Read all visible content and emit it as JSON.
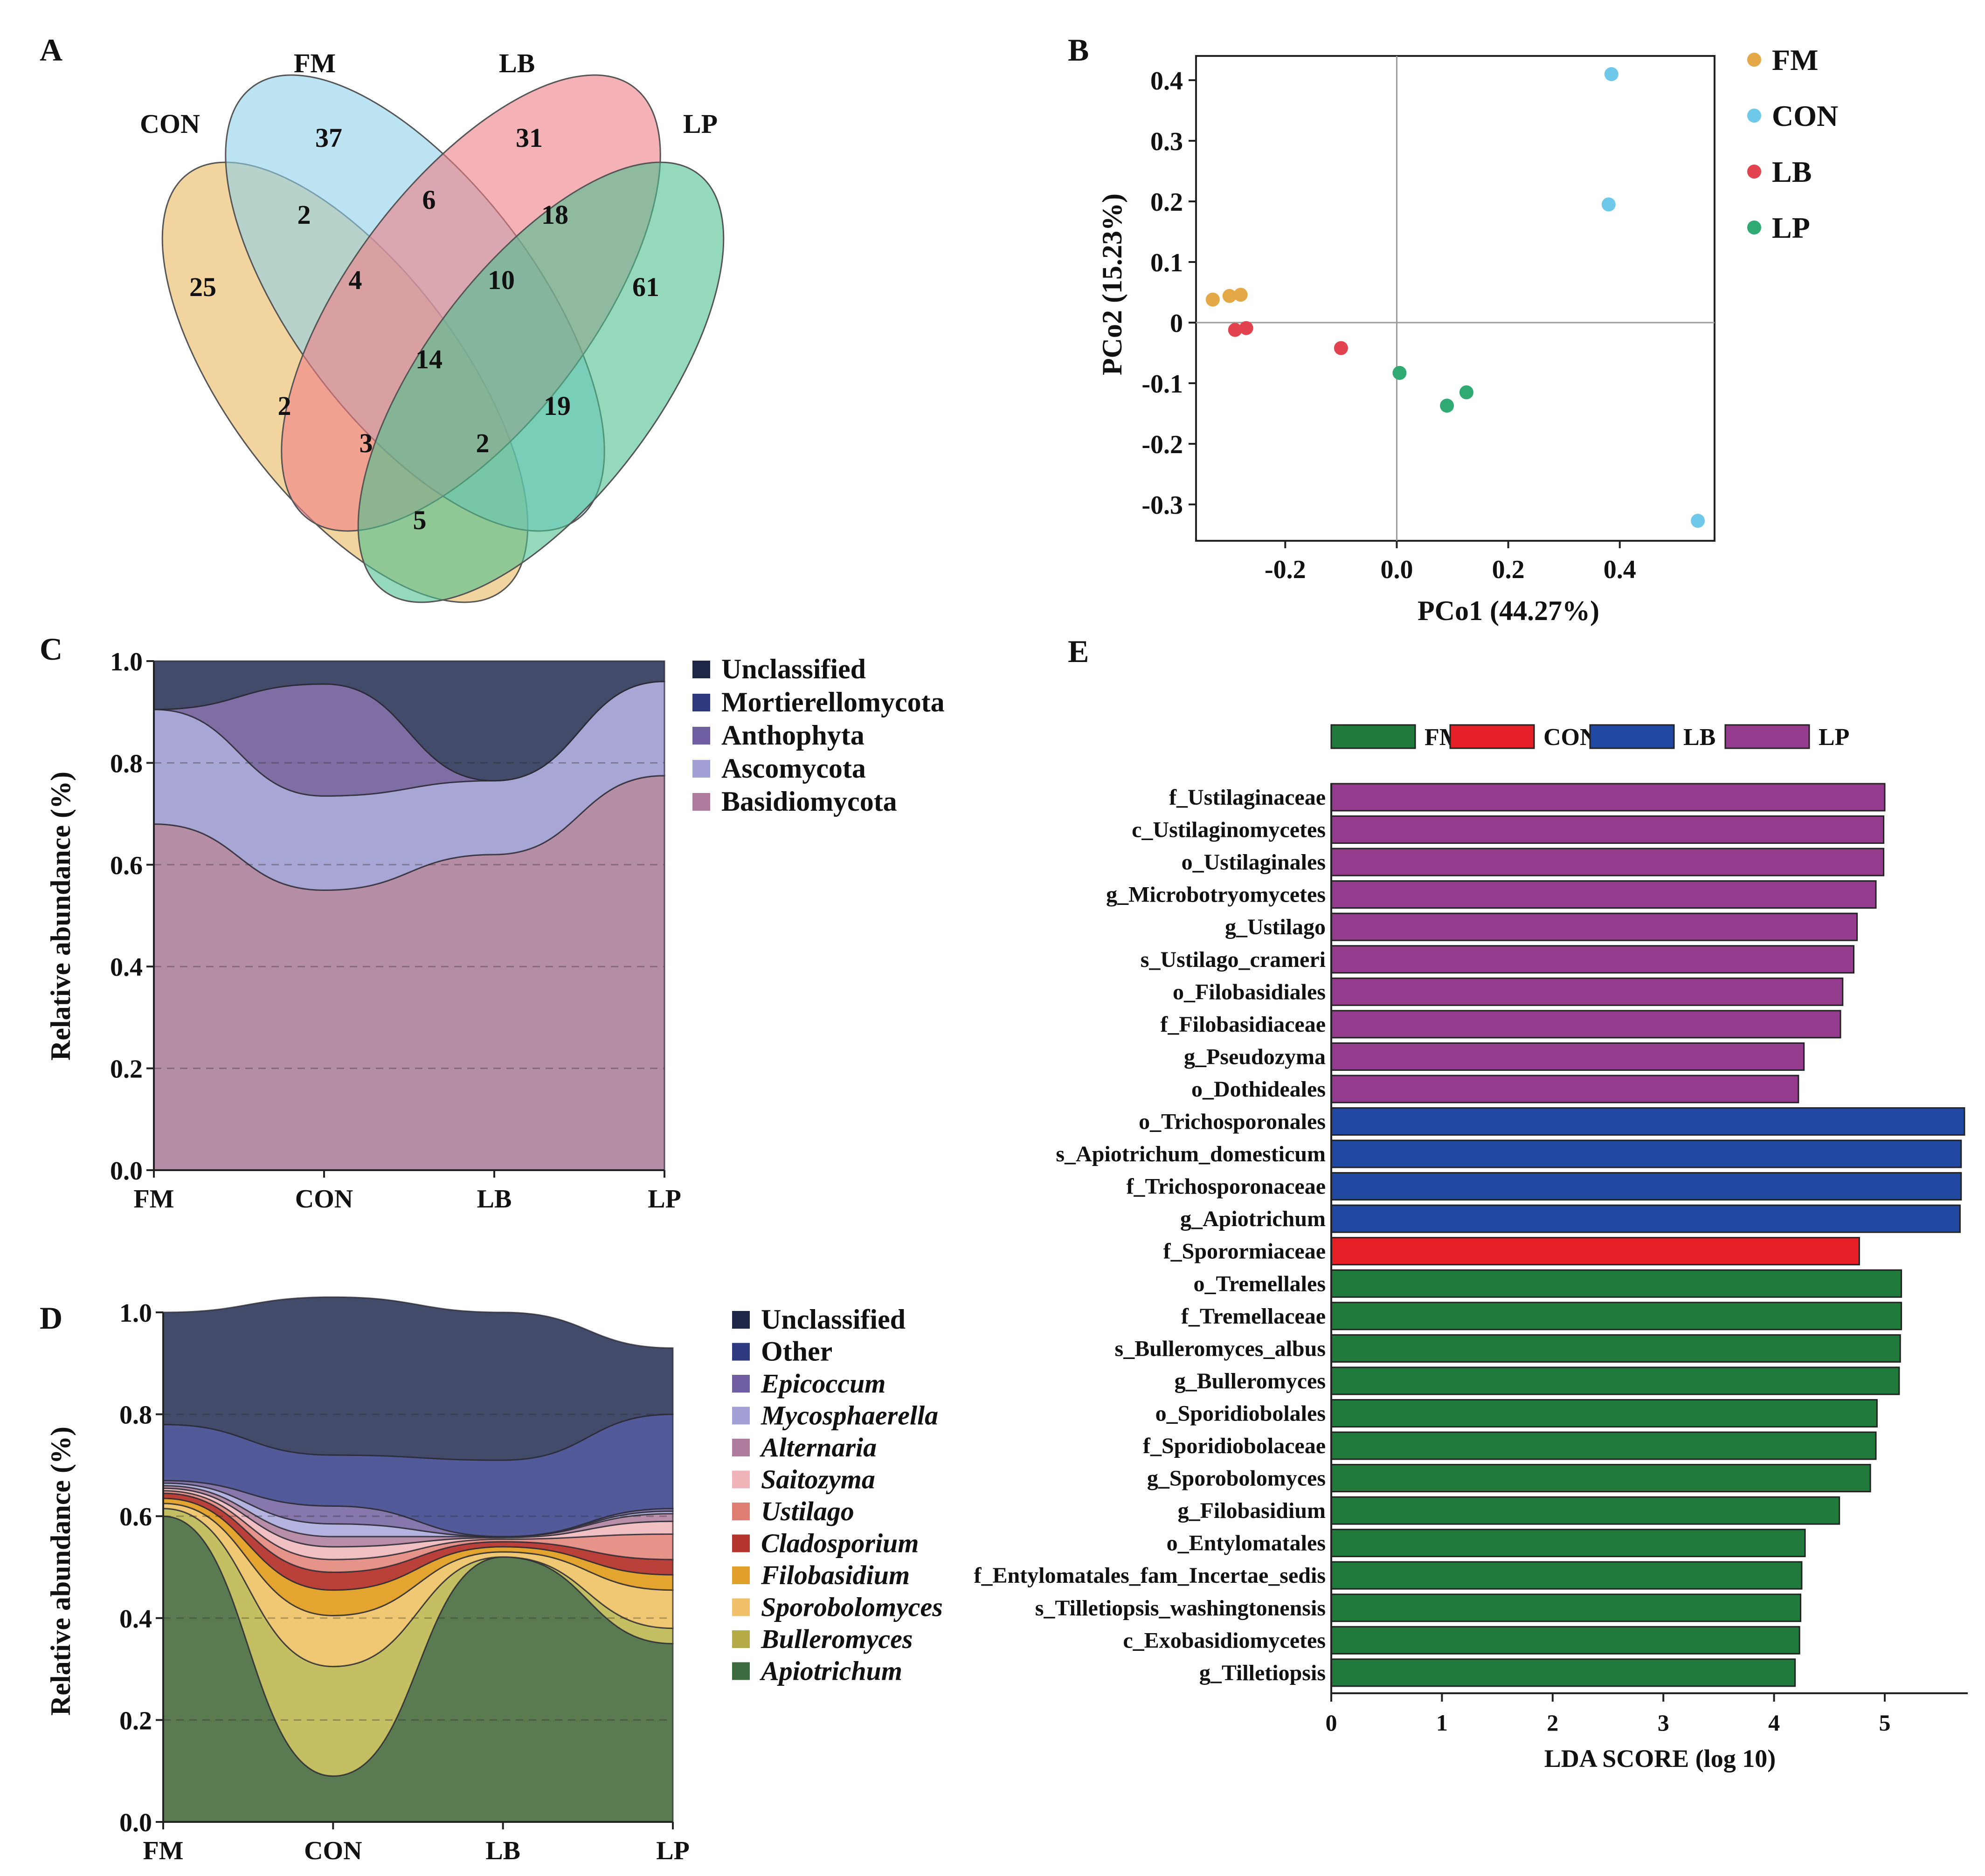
{
  "panels": {
    "A": "A",
    "B": "B",
    "C": "C",
    "D": "D",
    "E": "E"
  },
  "chart_data": [
    {
      "panel": "A",
      "type": "venn",
      "sets": [
        {
          "name": "CON",
          "color": "#e9b95e"
        },
        {
          "name": "FM",
          "color": "#8fd1ea"
        },
        {
          "name": "LB",
          "color": "#ee7f86"
        },
        {
          "name": "LP",
          "color": "#4cc08f"
        }
      ],
      "regions": [
        {
          "sets": "CON",
          "value": 25
        },
        {
          "sets": "FM",
          "value": 37
        },
        {
          "sets": "LB",
          "value": 31
        },
        {
          "sets": "LP",
          "value": 61
        },
        {
          "sets": "CON&FM",
          "value": 2
        },
        {
          "sets": "FM&LB",
          "value": 6
        },
        {
          "sets": "LB&LP",
          "value": 18
        },
        {
          "sets": "CON&FM&LB",
          "value": 4
        },
        {
          "sets": "FM&LB&LP",
          "value": 10
        },
        {
          "sets": "CON&FM&LB&LP",
          "value": 14
        },
        {
          "sets": "CON&LB",
          "value": 2
        },
        {
          "sets": "FM&LP",
          "value": 19
        },
        {
          "sets": "CON&LB&LP",
          "value": 3
        },
        {
          "sets": "CON&FM&LP",
          "value": 2
        },
        {
          "sets": "CON&LP",
          "value": 5
        }
      ]
    },
    {
      "panel": "B",
      "type": "scatter",
      "xlabel": "PCo1 (44.27%)",
      "ylabel": "PCo2 (15.23%)",
      "xlim": [
        -0.36,
        0.57
      ],
      "ylim": [
        -0.36,
        0.44
      ],
      "xticks": [
        -0.2,
        0.0,
        0.2,
        0.4
      ],
      "xtick_labels": [
        "-0.2",
        "0.0",
        "0.2",
        "0.4"
      ],
      "yticks": [
        0.4,
        0.3,
        0.2,
        0.1,
        0,
        -0.1,
        -0.2,
        -0.3
      ],
      "ytick_labels": [
        "0.4",
        "0.3",
        "0.2",
        "0.1",
        "0",
        "-0.1",
        "-0.2",
        "-0.3"
      ],
      "series": [
        {
          "name": "FM",
          "color": "#e5a847",
          "points": [
            [
              -0.33,
              0.038
            ],
            [
              -0.3,
              0.044
            ],
            [
              -0.28,
              0.046
            ]
          ]
        },
        {
          "name": "CON",
          "color": "#6ec8ea",
          "points": [
            [
              0.385,
              0.41
            ],
            [
              0.38,
              0.195
            ],
            [
              0.54,
              -0.327
            ]
          ]
        },
        {
          "name": "LB",
          "color": "#e2434f",
          "points": [
            [
              -0.29,
              -0.012
            ],
            [
              -0.27,
              -0.009
            ],
            [
              -0.1,
              -0.042
            ]
          ]
        },
        {
          "name": "LP",
          "color": "#2eaa72",
          "points": [
            [
              0.005,
              -0.083
            ],
            [
              0.09,
              -0.137
            ],
            [
              0.125,
              -0.115
            ]
          ]
        }
      ]
    },
    {
      "panel": "C",
      "type": "area",
      "ylabel": "Relative abundance (%)",
      "categories": [
        "FM",
        "CON",
        "LB",
        "LP"
      ],
      "ylim": [
        0,
        1.0
      ],
      "yticks": [
        "1.0",
        "0.8",
        "0.6",
        "0.4",
        "0.2",
        "0.0"
      ],
      "series": [
        {
          "name": "Basidiomycota",
          "color": "#b58ea6",
          "values": [
            0.68,
            0.55,
            0.62,
            0.775
          ]
        },
        {
          "name": "Ascomycota",
          "color": "#a8a6d4",
          "values": [
            0.225,
            0.185,
            0.145,
            0.185
          ]
        },
        {
          "name": "Anthophyta",
          "color": "#7f6ea4",
          "values": [
            0.0,
            0.22,
            0.0,
            0.0
          ]
        },
        {
          "name": "Mortierellomycota",
          "color": "#2d3a80",
          "values": [
            0.0,
            0.0,
            0.0,
            0.0
          ]
        },
        {
          "name": "Unclassified",
          "color": "#434b6b",
          "values": [
            0.095,
            0.045,
            0.235,
            0.04
          ]
        }
      ],
      "legend": [
        {
          "name": "Unclassified",
          "color": "#1f2746",
          "italic": false
        },
        {
          "name": "Mortierellomycota",
          "color": "#2d3a80",
          "italic": false
        },
        {
          "name": "Anthophyta",
          "color": "#6f5fa2",
          "italic": false
        },
        {
          "name": "Ascomycota",
          "color": "#a2a0d4",
          "italic": false
        },
        {
          "name": "Basidiomycota",
          "color": "#b07c9e",
          "italic": false
        }
      ]
    },
    {
      "panel": "D",
      "type": "area",
      "ylabel": "Relative abundance (%)",
      "categories": [
        "FM",
        "CON",
        "LB",
        "LP"
      ],
      "ylim": [
        0,
        1.0
      ],
      "yticks": [
        "1.0",
        "0.8",
        "0.6",
        "0.4",
        "0.2",
        "0.0"
      ],
      "series": [
        {
          "name": "Apiotrichum",
          "color": "#5a7a52",
          "values": [
            0.6,
            0.09,
            0.52,
            0.35
          ]
        },
        {
          "name": "Bulleromyces",
          "color": "#c5bf63",
          "values": [
            0.015,
            0.215,
            0.0,
            0.03
          ]
        },
        {
          "name": "Sporobolomyces",
          "color": "#f0c874",
          "values": [
            0.01,
            0.1,
            0.01,
            0.075
          ]
        },
        {
          "name": "Filobasidium",
          "color": "#e3a530",
          "values": [
            0.01,
            0.05,
            0.01,
            0.03
          ]
        },
        {
          "name": "Cladosporium",
          "color": "#b9413a",
          "values": [
            0.01,
            0.035,
            0.01,
            0.03
          ]
        },
        {
          "name": "Ustilago",
          "color": "#e6938a",
          "values": [
            0.005,
            0.025,
            0.005,
            0.05
          ]
        },
        {
          "name": "Saitozyma",
          "color": "#f1c0c3",
          "values": [
            0.005,
            0.025,
            0.003,
            0.025
          ]
        },
        {
          "name": "Alternaria",
          "color": "#b88ea8",
          "values": [
            0.005,
            0.02,
            0.002,
            0.015
          ]
        },
        {
          "name": "Mycosphaerella",
          "color": "#b5b4e0",
          "values": [
            0.005,
            0.025,
            0.0,
            0.005
          ]
        },
        {
          "name": "Epicoccum",
          "color": "#8677ad",
          "values": [
            0.005,
            0.035,
            0.0,
            0.005
          ]
        },
        {
          "name": "Other",
          "color": "#525a99",
          "values": [
            0.11,
            0.1,
            0.15,
            0.185
          ]
        },
        {
          "name": "Unclassified",
          "color": "#434b6b",
          "values": [
            0.22,
            0.31,
            0.29,
            0.13
          ]
        }
      ],
      "legend": [
        {
          "name": "Unclassified",
          "color": "#1f2746",
          "italic": false
        },
        {
          "name": "Other",
          "color": "#2d3a80",
          "italic": false
        },
        {
          "name": "Epicoccum",
          "color": "#6f5fa2",
          "italic": true
        },
        {
          "name": "Mycosphaerella",
          "color": "#a2a0d4",
          "italic": true
        },
        {
          "name": "Alternaria",
          "color": "#b07c9e",
          "italic": true
        },
        {
          "name": "Saitozyma",
          "color": "#f0b3b8",
          "italic": true
        },
        {
          "name": "Ustilago",
          "color": "#df7f74",
          "italic": true
        },
        {
          "name": "Cladosporium",
          "color": "#b3352e",
          "italic": true
        },
        {
          "name": "Filobasidium",
          "color": "#e0a02a",
          "italic": true
        },
        {
          "name": "Sporobolomyces",
          "color": "#f0c06a",
          "italic": true
        },
        {
          "name": "Bulleromyces",
          "color": "#b5ac49",
          "italic": true
        },
        {
          "name": "Apiotrichum",
          "color": "#3b6a3e",
          "italic": true
        }
      ]
    },
    {
      "panel": "E",
      "type": "bar",
      "orientation": "horizontal",
      "xlabel": "LDA SCORE (log 10)",
      "xlim": [
        0,
        5.75
      ],
      "xticks": [
        0,
        1,
        2,
        3,
        4,
        5
      ],
      "xtick_labels": [
        "0",
        "1",
        "2",
        "3",
        "4",
        "5"
      ],
      "groups": [
        {
          "name": "FM",
          "color": "#1f7a3c"
        },
        {
          "name": "CON",
          "color": "#e41f26"
        },
        {
          "name": "LB",
          "color": "#2149a1"
        },
        {
          "name": "LP",
          "color": "#953c8f"
        }
      ],
      "bars": [
        {
          "label": "f_Ustilaginaceae",
          "value": 5.0,
          "group": "LP"
        },
        {
          "label": "c_Ustilaginomycetes",
          "value": 4.99,
          "group": "LP"
        },
        {
          "label": "o_Ustilaginales",
          "value": 4.99,
          "group": "LP"
        },
        {
          "label": "g_Microbotryomycetes",
          "value": 4.92,
          "group": "LP"
        },
        {
          "label": "g_Ustilago",
          "value": 4.75,
          "group": "LP"
        },
        {
          "label": "s_Ustilago_crameri",
          "value": 4.72,
          "group": "LP"
        },
        {
          "label": "o_Filobasidiales",
          "value": 4.62,
          "group": "LP"
        },
        {
          "label": "f_Filobasidiaceae",
          "value": 4.6,
          "group": "LP"
        },
        {
          "label": "g_Pseudozyma",
          "value": 4.27,
          "group": "LP"
        },
        {
          "label": "o_Dothideales",
          "value": 4.22,
          "group": "LP"
        },
        {
          "label": "o_Trichosporonales",
          "value": 5.72,
          "group": "LB"
        },
        {
          "label": "s_Apiotrichum_domesticum",
          "value": 5.69,
          "group": "LB"
        },
        {
          "label": "f_Trichosporonaceae",
          "value": 5.69,
          "group": "LB"
        },
        {
          "label": "g_Apiotrichum",
          "value": 5.68,
          "group": "LB"
        },
        {
          "label": "f_Sporormiaceae",
          "value": 4.77,
          "group": "CON"
        },
        {
          "label": "o_Tremellales",
          "value": 5.15,
          "group": "FM"
        },
        {
          "label": "f_Tremellaceae",
          "value": 5.15,
          "group": "FM"
        },
        {
          "label": "s_Bulleromyces_albus",
          "value": 5.14,
          "group": "FM"
        },
        {
          "label": "g_Bulleromyces",
          "value": 5.13,
          "group": "FM"
        },
        {
          "label": "o_Sporidiobolales",
          "value": 4.93,
          "group": "FM"
        },
        {
          "label": "f_Sporidiobolaceae",
          "value": 4.92,
          "group": "FM"
        },
        {
          "label": "g_Sporobolomyces",
          "value": 4.87,
          "group": "FM"
        },
        {
          "label": "g_Filobasidium",
          "value": 4.59,
          "group": "FM"
        },
        {
          "label": "o_Entylomatales",
          "value": 4.28,
          "group": "FM"
        },
        {
          "label": "f_Entylomatales_fam_Incertae_sedis",
          "value": 4.25,
          "group": "FM"
        },
        {
          "label": "s_Tilletiopsis_washingtonensis",
          "value": 4.24,
          "group": "FM"
        },
        {
          "label": "c_Exobasidiomycetes",
          "value": 4.23,
          "group": "FM"
        },
        {
          "label": "g_Tilletiopsis",
          "value": 4.19,
          "group": "FM"
        }
      ]
    }
  ]
}
